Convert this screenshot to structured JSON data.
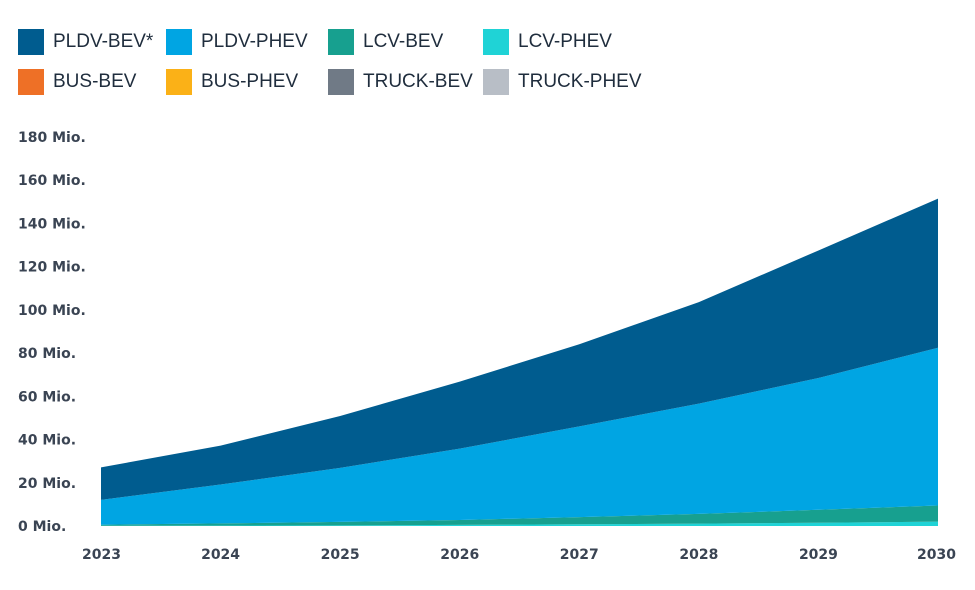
{
  "chart_data": {
    "type": "area",
    "stacked": true,
    "x": [
      "2023",
      "2024",
      "2025",
      "2026",
      "2027",
      "2028",
      "2029",
      "2030"
    ],
    "ylim": [
      0,
      180
    ],
    "yticks": [
      "0 Mio.",
      "20 Mio.",
      "40 Mio.",
      "60 Mio.",
      "80 Mio.",
      "100 Mio.",
      "120 Mio.",
      "140 Mio.",
      "160 Mio.",
      "180 Mio."
    ],
    "ytick_values": [
      0,
      20,
      40,
      60,
      80,
      100,
      120,
      140,
      160,
      180
    ],
    "legend_position": "top-left",
    "grid": false,
    "series": [
      {
        "name": "TRUCK-PHEV",
        "color": "#b8bec6",
        "values": [
          0,
          0,
          0,
          0,
          0,
          0,
          0,
          0
        ]
      },
      {
        "name": "TRUCK-BEV",
        "color": "#707a86",
        "values": [
          0,
          0,
          0,
          0,
          0,
          0,
          0,
          0
        ]
      },
      {
        "name": "BUS-PHEV",
        "color": "#fbb117",
        "values": [
          0,
          0,
          0,
          0,
          0,
          0,
          0,
          0
        ]
      },
      {
        "name": "BUS-BEV",
        "color": "#ee7026",
        "values": [
          0,
          0,
          0,
          0,
          0,
          0,
          0,
          0
        ]
      },
      {
        "name": "LCV-PHEV",
        "color": "#1fd3d6",
        "values": [
          0.1,
          0.2,
          0.3,
          0.5,
          0.8,
          1.1,
          1.5,
          2
        ]
      },
      {
        "name": "LCV-BEV",
        "color": "#17a08f",
        "values": [
          0.5,
          1,
          1.6,
          2.3,
          3.3,
          4.5,
          6,
          7.5
        ]
      },
      {
        "name": "PLDV-PHEV",
        "color": "#00a5e3",
        "values": [
          11.5,
          18,
          25,
          33,
          42,
          51,
          61,
          73
        ]
      },
      {
        "name": "PLDV-BEV*",
        "color": "#005c8f",
        "values": [
          15,
          18,
          24,
          31,
          38,
          47,
          59,
          69
        ]
      }
    ]
  },
  "legend": [
    {
      "label": "PLDV-BEV*",
      "color": "#005c8f"
    },
    {
      "label": "PLDV-PHEV",
      "color": "#00a5e3"
    },
    {
      "label": "LCV-BEV",
      "color": "#17a08f"
    },
    {
      "label": "LCV-PHEV",
      "color": "#1fd3d6"
    },
    {
      "label": "BUS-BEV",
      "color": "#ee7026"
    },
    {
      "label": "BUS-PHEV",
      "color": "#fbb117"
    },
    {
      "label": "TRUCK-BEV",
      "color": "#707a86"
    },
    {
      "label": "TRUCK-PHEV",
      "color": "#b8bec6"
    }
  ]
}
